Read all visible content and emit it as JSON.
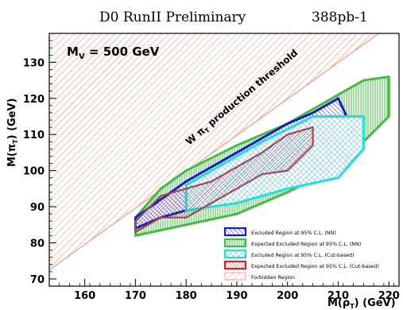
{
  "chart_data": {
    "type": "area",
    "header": {
      "left": "D0 RunII Preliminary",
      "right": "388pb-1"
    },
    "annotation": {
      "main": "M",
      "sub": "V",
      "value": " = 500 GeV"
    },
    "threshold_label": "W π",
    "threshold_label_sub": "T",
    "threshold_label_rest": " production threshold",
    "xlabel": {
      "main": "M(ρ",
      "sub": "T",
      "end": ") (GeV)"
    },
    "ylabel": {
      "main": "M(π",
      "sub": "T",
      "end": ") (GeV)"
    },
    "xlim": [
      153,
      222
    ],
    "ylim": [
      68,
      138
    ],
    "xticks": [
      160,
      170,
      180,
      190,
      200,
      210,
      220
    ],
    "yticks": [
      70,
      80,
      90,
      100,
      110,
      120,
      130
    ],
    "forbidden_line": {
      "points": [
        [
          153,
          72.5
        ],
        [
          218,
          138
        ]
      ]
    },
    "regions": [
      {
        "key": "expected_nn",
        "name": "Expected Excluded Region at 95% C.L. (NN)",
        "color": "#44bb44",
        "fill": "vlines",
        "points": [
          [
            170,
            82
          ],
          [
            180,
            85
          ],
          [
            190,
            88
          ],
          [
            200,
            94
          ],
          [
            210,
            101
          ],
          [
            215,
            108
          ],
          [
            220,
            115
          ],
          [
            220,
            126
          ],
          [
            215,
            125
          ],
          [
            210,
            121
          ],
          [
            200,
            113
          ],
          [
            190,
            107
          ],
          [
            180,
            100
          ],
          [
            175,
            95
          ],
          [
            170,
            87
          ]
        ]
      },
      {
        "key": "nn",
        "name": "Excluded Region at 95% C.L. (NN)",
        "color": "#1a1acc",
        "fill": "hatch-fine",
        "points": [
          [
            170,
            84
          ],
          [
            175,
            87
          ],
          [
            180,
            89
          ],
          [
            185,
            91
          ],
          [
            190,
            93
          ],
          [
            195,
            93
          ],
          [
            200,
            97
          ],
          [
            205,
            100
          ],
          [
            210,
            103
          ],
          [
            212,
            105
          ],
          [
            212,
            114
          ],
          [
            210,
            120
          ],
          [
            205,
            116
          ],
          [
            200,
            113
          ],
          [
            195,
            109
          ],
          [
            190,
            105
          ],
          [
            185,
            101
          ],
          [
            180,
            97
          ],
          [
            175,
            92
          ],
          [
            170,
            87
          ]
        ]
      },
      {
        "key": "cut",
        "name": "Excluded Region at 95% C.L. (Cut-based)",
        "color": "#22dddd",
        "fill": "hatch-cross",
        "points": [
          [
            180,
            89
          ],
          [
            185,
            90
          ],
          [
            190,
            91
          ],
          [
            200,
            95
          ],
          [
            210,
            98
          ],
          [
            215,
            106
          ],
          [
            215,
            115
          ],
          [
            205,
            115
          ],
          [
            195,
            108
          ],
          [
            190,
            104
          ],
          [
            180,
            96
          ]
        ]
      },
      {
        "key": "expected_cut",
        "name": "Expected Excluded Region at 95% C.L. (Cut-based)",
        "color": "#e02020",
        "fill": "hatch-dense",
        "points": [
          [
            170,
            83
          ],
          [
            175,
            87
          ],
          [
            180,
            87
          ],
          [
            185,
            91
          ],
          [
            190,
            95
          ],
          [
            195,
            99
          ],
          [
            200,
            100
          ],
          [
            205,
            107
          ],
          [
            205,
            112
          ],
          [
            200,
            110
          ],
          [
            195,
            105
          ],
          [
            190,
            101
          ],
          [
            185,
            97
          ],
          [
            180,
            95
          ],
          [
            175,
            93
          ],
          [
            170,
            86
          ]
        ]
      }
    ],
    "legend": {
      "placement": "bottom-right",
      "entries": [
        {
          "key": "nn",
          "label": "Excluded Region at 95% C.L. (NN)"
        },
        {
          "key": "expected_nn",
          "label": "Expected Excluded Region at 95% C.L. (NN)"
        },
        {
          "key": "cut",
          "label": "Excluded Region at 95% C.L. (Cut-based)"
        },
        {
          "key": "expected_cut",
          "label": "Expected Excluded Region at 95% C.L. (Cut-based)"
        },
        {
          "key": "forbidden",
          "label": "Forbidden Region"
        }
      ]
    },
    "colors": {
      "forbidden": "#ee8866",
      "frame": "#000000",
      "dark_line": "#885566"
    },
    "grid": false
  }
}
